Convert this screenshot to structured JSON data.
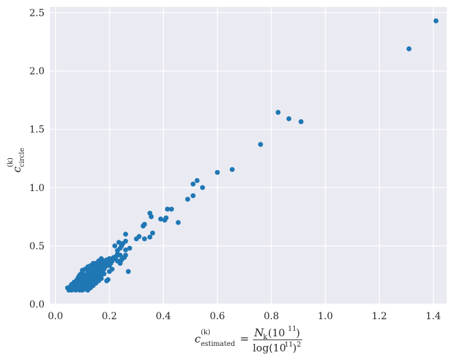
{
  "chart_data": {
    "type": "scatter",
    "xlabel": {
      "symbol": "c",
      "superscript": "(k)",
      "subscript": "estimated",
      "equals": "=",
      "numerator": "N",
      "numerator_sub": "k",
      "numerator_arg": "(10",
      "numerator_exp": "11",
      "numerator_close": ")",
      "denominator": "log(10",
      "denominator_exp": "11",
      "denominator_close": ")",
      "denominator_pow": "2"
    },
    "ylabel": {
      "symbol": "c",
      "superscript": "(k)",
      "subscript": "circle"
    },
    "xlim": [
      -0.02,
      1.45
    ],
    "ylim": [
      0.0,
      2.55
    ],
    "xticks": [
      0.0,
      0.2,
      0.4,
      0.6,
      0.8,
      1.0,
      1.2,
      1.4
    ],
    "xtick_labels": [
      "0.0",
      "0.2",
      "0.4",
      "0.6",
      "0.8",
      "1.0",
      "1.2",
      "1.4"
    ],
    "yticks": [
      0.0,
      0.5,
      1.0,
      1.5,
      2.0,
      2.5
    ],
    "ytick_labels": [
      "0.0",
      "0.5",
      "1.0",
      "1.5",
      "2.0",
      "2.5"
    ],
    "grid": true,
    "marker_color": "#1f77b4",
    "background_color": "#eaeaf2",
    "points": [
      [
        1.41,
        2.43
      ],
      [
        1.31,
        2.19
      ],
      [
        0.825,
        1.645
      ],
      [
        0.865,
        1.59
      ],
      [
        0.91,
        1.565
      ],
      [
        0.76,
        1.37
      ],
      [
        0.655,
        1.155
      ],
      [
        0.6,
        1.13
      ],
      [
        0.525,
        1.06
      ],
      [
        0.51,
        1.03
      ],
      [
        0.545,
        1.0
      ],
      [
        0.51,
        0.93
      ],
      [
        0.49,
        0.9
      ],
      [
        0.415,
        0.815
      ],
      [
        0.43,
        0.815
      ],
      [
        0.35,
        0.78
      ],
      [
        0.355,
        0.75
      ],
      [
        0.39,
        0.73
      ],
      [
        0.405,
        0.72
      ],
      [
        0.41,
        0.74
      ],
      [
        0.455,
        0.7
      ],
      [
        0.33,
        0.685
      ],
      [
        0.325,
        0.67
      ],
      [
        0.36,
        0.61
      ],
      [
        0.31,
        0.58
      ],
      [
        0.3,
        0.56
      ],
      [
        0.35,
        0.575
      ],
      [
        0.33,
        0.56
      ],
      [
        0.26,
        0.6
      ],
      [
        0.26,
        0.54
      ],
      [
        0.25,
        0.52
      ],
      [
        0.235,
        0.53
      ],
      [
        0.245,
        0.5
      ],
      [
        0.24,
        0.48
      ],
      [
        0.22,
        0.5
      ],
      [
        0.275,
        0.48
      ],
      [
        0.26,
        0.465
      ],
      [
        0.23,
        0.46
      ],
      [
        0.26,
        0.42
      ],
      [
        0.255,
        0.4
      ],
      [
        0.27,
        0.28
      ],
      [
        0.23,
        0.37
      ],
      [
        0.24,
        0.35
      ],
      [
        0.21,
        0.3
      ],
      [
        0.2,
        0.28
      ],
      [
        0.195,
        0.21
      ],
      [
        0.19,
        0.2
      ],
      [
        0.17,
        0.39
      ],
      [
        0.165,
        0.36
      ],
      [
        0.18,
        0.37
      ],
      [
        0.16,
        0.34
      ],
      [
        0.15,
        0.3
      ],
      [
        0.14,
        0.33
      ],
      [
        0.13,
        0.31
      ],
      [
        0.12,
        0.29
      ],
      [
        0.17,
        0.32
      ],
      [
        0.155,
        0.28
      ],
      [
        0.145,
        0.26
      ],
      [
        0.18,
        0.3
      ],
      [
        0.175,
        0.27
      ],
      [
        0.16,
        0.25
      ],
      [
        0.15,
        0.23
      ],
      [
        0.135,
        0.22
      ],
      [
        0.125,
        0.2
      ],
      [
        0.115,
        0.18
      ],
      [
        0.105,
        0.17
      ],
      [
        0.095,
        0.15
      ],
      [
        0.085,
        0.14
      ],
      [
        0.07,
        0.13
      ],
      [
        0.06,
        0.12
      ],
      [
        0.05,
        0.12
      ],
      [
        0.055,
        0.15
      ],
      [
        0.065,
        0.16
      ],
      [
        0.075,
        0.17
      ],
      [
        0.08,
        0.19
      ],
      [
        0.09,
        0.21
      ],
      [
        0.1,
        0.23
      ],
      [
        0.11,
        0.25
      ],
      [
        0.12,
        0.24
      ],
      [
        0.13,
        0.27
      ],
      [
        0.14,
        0.29
      ],
      [
        0.1,
        0.27
      ],
      [
        0.095,
        0.26
      ],
      [
        0.11,
        0.22
      ],
      [
        0.12,
        0.19
      ],
      [
        0.13,
        0.17
      ],
      [
        0.14,
        0.16
      ],
      [
        0.15,
        0.18
      ],
      [
        0.16,
        0.2
      ],
      [
        0.17,
        0.22
      ],
      [
        0.185,
        0.34
      ],
      [
        0.19,
        0.38
      ],
      [
        0.2,
        0.39
      ],
      [
        0.205,
        0.35
      ],
      [
        0.2,
        0.33
      ],
      [
        0.21,
        0.37
      ],
      [
        0.215,
        0.4
      ],
      [
        0.225,
        0.41
      ],
      [
        0.23,
        0.43
      ],
      [
        0.22,
        0.39
      ],
      [
        0.245,
        0.38
      ],
      [
        0.24,
        0.42
      ],
      [
        0.11,
        0.13
      ],
      [
        0.12,
        0.12
      ],
      [
        0.13,
        0.14
      ],
      [
        0.1,
        0.12
      ],
      [
        0.09,
        0.12
      ],
      [
        0.08,
        0.13
      ],
      [
        0.07,
        0.15
      ],
      [
        0.065,
        0.14
      ],
      [
        0.075,
        0.12
      ],
      [
        0.105,
        0.2
      ],
      [
        0.115,
        0.21
      ],
      [
        0.125,
        0.22
      ],
      [
        0.135,
        0.24
      ],
      [
        0.145,
        0.25
      ],
      [
        0.155,
        0.26
      ],
      [
        0.165,
        0.29
      ],
      [
        0.175,
        0.31
      ],
      [
        0.185,
        0.32
      ],
      [
        0.19,
        0.34
      ],
      [
        0.195,
        0.36
      ],
      [
        0.16,
        0.37
      ],
      [
        0.15,
        0.35
      ],
      [
        0.14,
        0.35
      ],
      [
        0.13,
        0.33
      ],
      [
        0.12,
        0.32
      ],
      [
        0.11,
        0.3
      ],
      [
        0.1,
        0.29
      ],
      [
        0.09,
        0.25
      ],
      [
        0.085,
        0.23
      ],
      [
        0.08,
        0.21
      ],
      [
        0.07,
        0.19
      ],
      [
        0.06,
        0.17
      ],
      [
        0.045,
        0.14
      ],
      [
        0.05,
        0.13
      ],
      [
        0.055,
        0.13
      ],
      [
        0.06,
        0.14
      ],
      [
        0.1,
        0.14
      ],
      [
        0.105,
        0.15
      ],
      [
        0.115,
        0.16
      ],
      [
        0.125,
        0.15
      ],
      [
        0.135,
        0.19
      ],
      [
        0.14,
        0.21
      ],
      [
        0.15,
        0.21
      ],
      [
        0.16,
        0.23
      ],
      [
        0.17,
        0.25
      ],
      [
        0.18,
        0.26
      ],
      [
        0.12,
        0.27
      ],
      [
        0.13,
        0.29
      ],
      [
        0.14,
        0.31
      ],
      [
        0.15,
        0.33
      ],
      [
        0.16,
        0.31
      ],
      [
        0.165,
        0.33
      ],
      [
        0.175,
        0.35
      ],
      [
        0.18,
        0.33
      ],
      [
        0.17,
        0.28
      ],
      [
        0.095,
        0.18
      ],
      [
        0.085,
        0.16
      ],
      [
        0.09,
        0.2
      ],
      [
        0.1,
        0.21
      ],
      [
        0.11,
        0.19
      ],
      [
        0.12,
        0.21
      ],
      [
        0.13,
        0.23
      ],
      [
        0.14,
        0.23
      ],
      [
        0.15,
        0.24
      ],
      [
        0.16,
        0.27
      ]
    ]
  }
}
